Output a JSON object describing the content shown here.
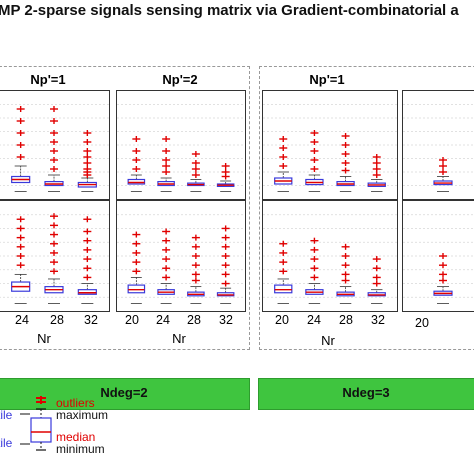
{
  "title": "MP 2-sparse signals sensing matrix via Gradient-combinatorial a",
  "colors": {
    "box": "#3a3adb",
    "median": "#e00000",
    "outlier": "#e00000",
    "banner": "#3fc53f"
  },
  "groups": [
    {
      "name": "left",
      "panel_titles": [
        "Np'=1",
        "Np'=2"
      ],
      "banner": "Ndeg=2"
    },
    {
      "name": "right",
      "panel_titles": [
        "Np'=1"
      ],
      "banner": "Ndeg=3"
    }
  ],
  "axis": {
    "left_ticks_a": [
      "24",
      "28",
      "32"
    ],
    "left_ticks_b": [
      "20",
      "24",
      "28",
      "32"
    ],
    "right_ticks_a": [
      "20",
      "24",
      "28",
      "32"
    ],
    "right_ticks_b": [
      "20"
    ],
    "xlabel": "Nr"
  },
  "legend": {
    "outliers": "outliers",
    "maximum": "maximum",
    "median": "median",
    "minimum": "minimum",
    "tile_top": "tile",
    "tile_bottom": "tile"
  },
  "chart_data": {
    "type": "box",
    "xlabel": "Nr",
    "panels": [
      {
        "id": "A1",
        "group": "Ndeg=2",
        "title": "Np'=1",
        "row": 1,
        "x": [
          "24",
          "28",
          "32"
        ],
        "boxes": [
          {
            "q1": 0.35,
            "median": 0.45,
            "q3": 0.55,
            "max": 0.9,
            "outliers": [
              1.2,
              1.6,
              2.0,
              2.4,
              2.8
            ]
          },
          {
            "q1": 0.25,
            "median": 0.3,
            "q3": 0.38,
            "max": 0.6,
            "outliers": [
              0.8,
              1.1,
              1.4,
              1.7,
              2.0,
              2.4,
              2.8
            ]
          },
          {
            "q1": 0.2,
            "median": 0.28,
            "q3": 0.35,
            "max": 0.5,
            "outliers": [
              0.6,
              0.7,
              0.8,
              1.0,
              1.2,
              1.4,
              1.7,
              2.0
            ]
          }
        ]
      },
      {
        "id": "A2",
        "group": "Ndeg=2",
        "title": "Np'=2",
        "row": 1,
        "x": [
          "20",
          "24",
          "28",
          "32"
        ],
        "boxes": [
          {
            "q1": 0.3,
            "median": 0.35,
            "q3": 0.45,
            "max": 0.6,
            "outliers": [
              0.8,
              1.1,
              1.4,
              1.8
            ]
          },
          {
            "q1": 0.25,
            "median": 0.3,
            "q3": 0.38,
            "max": 0.5,
            "outliers": [
              0.7,
              0.9,
              1.1,
              1.4,
              1.8
            ]
          },
          {
            "q1": 0.25,
            "median": 0.28,
            "q3": 0.33,
            "max": 0.45,
            "outliers": [
              0.6,
              0.8,
              1.0,
              1.3
            ]
          },
          {
            "q1": 0.22,
            "median": 0.26,
            "q3": 0.3,
            "max": 0.4,
            "outliers": [
              0.55,
              0.7,
              0.9
            ]
          }
        ]
      },
      {
        "id": "A3",
        "group": "Ndeg=2",
        "row": 2,
        "x": [
          "24",
          "28",
          "32"
        ],
        "boxes": [
          {
            "q1": 0.45,
            "median": 0.6,
            "q3": 0.75,
            "max": 1.0,
            "outliers": [
              1.3,
              1.6,
              1.9,
              2.2,
              2.5,
              2.8
            ]
          },
          {
            "q1": 0.4,
            "median": 0.5,
            "q3": 0.6,
            "max": 0.85,
            "outliers": [
              1.1,
              1.4,
              1.7,
              2.0,
              2.3,
              2.6,
              2.9
            ]
          },
          {
            "q1": 0.35,
            "median": 0.4,
            "q3": 0.5,
            "max": 0.7,
            "outliers": [
              0.9,
              1.2,
              1.5,
              1.8,
              2.1,
              2.4,
              2.8
            ]
          }
        ]
      },
      {
        "id": "A4",
        "group": "Ndeg=2",
        "row": 2,
        "x": [
          "20",
          "24",
          "28",
          "32"
        ],
        "boxes": [
          {
            "q1": 0.4,
            "median": 0.5,
            "q3": 0.65,
            "max": 0.9,
            "outliers": [
              1.1,
              1.4,
              1.7,
              2.0,
              2.3
            ]
          },
          {
            "q1": 0.35,
            "median": 0.42,
            "q3": 0.5,
            "max": 0.7,
            "outliers": [
              0.9,
              1.2,
              1.5,
              1.8,
              2.1,
              2.4
            ]
          },
          {
            "q1": 0.3,
            "median": 0.35,
            "q3": 0.42,
            "max": 0.6,
            "outliers": [
              0.8,
              1.0,
              1.3,
              1.6,
              1.9,
              2.2
            ]
          },
          {
            "q1": 0.3,
            "median": 0.33,
            "q3": 0.4,
            "max": 0.55,
            "outliers": [
              0.7,
              1.0,
              1.3,
              1.6,
              1.9,
              2.2,
              2.5
            ]
          }
        ]
      },
      {
        "id": "B1",
        "group": "Ndeg=3",
        "title": "Np'=1",
        "row": 1,
        "x": [
          "20",
          "24",
          "28",
          "32"
        ],
        "boxes": [
          {
            "q1": 0.3,
            "median": 0.4,
            "q3": 0.5,
            "max": 0.7,
            "outliers": [
              0.9,
              1.2,
              1.5,
              1.8
            ]
          },
          {
            "q1": 0.28,
            "median": 0.35,
            "q3": 0.45,
            "max": 0.6,
            "outliers": [
              0.8,
              1.1,
              1.4,
              1.7,
              2.0
            ]
          },
          {
            "q1": 0.25,
            "median": 0.3,
            "q3": 0.38,
            "max": 0.55,
            "outliers": [
              0.75,
              1.0,
              1.3,
              1.6,
              1.9
            ]
          },
          {
            "q1": 0.22,
            "median": 0.27,
            "q3": 0.33,
            "max": 0.45,
            "outliers": [
              0.6,
              0.8,
              1.0,
              1.2
            ]
          }
        ]
      },
      {
        "id": "B2",
        "group": "Ndeg=3",
        "row": 1,
        "x": [
          "20"
        ],
        "boxes": [
          {
            "q1": 0.28,
            "median": 0.33,
            "q3": 0.4,
            "max": 0.55,
            "outliers": [
              0.7,
              0.9,
              1.1
            ]
          }
        ]
      },
      {
        "id": "B3",
        "group": "Ndeg=3",
        "row": 2,
        "x": [
          "20",
          "24",
          "28",
          "32"
        ],
        "boxes": [
          {
            "q1": 0.4,
            "median": 0.5,
            "q3": 0.65,
            "max": 0.85,
            "outliers": [
              1.1,
              1.4,
              1.7,
              2.0
            ]
          },
          {
            "q1": 0.35,
            "median": 0.42,
            "q3": 0.5,
            "max": 0.7,
            "outliers": [
              0.9,
              1.2,
              1.5,
              1.8,
              2.1
            ]
          },
          {
            "q1": 0.3,
            "median": 0.35,
            "q3": 0.42,
            "max": 0.6,
            "outliers": [
              0.8,
              1.0,
              1.3,
              1.6,
              1.9
            ]
          },
          {
            "q1": 0.3,
            "median": 0.33,
            "q3": 0.4,
            "max": 0.5,
            "outliers": [
              0.7,
              0.9,
              1.2,
              1.5
            ]
          }
        ]
      },
      {
        "id": "B4",
        "group": "Ndeg=3",
        "row": 2,
        "x": [
          "20"
        ],
        "boxes": [
          {
            "q1": 0.32,
            "median": 0.38,
            "q3": 0.45,
            "max": 0.6,
            "outliers": [
              0.8,
              1.0,
              1.3,
              1.6
            ]
          }
        ]
      }
    ]
  }
}
